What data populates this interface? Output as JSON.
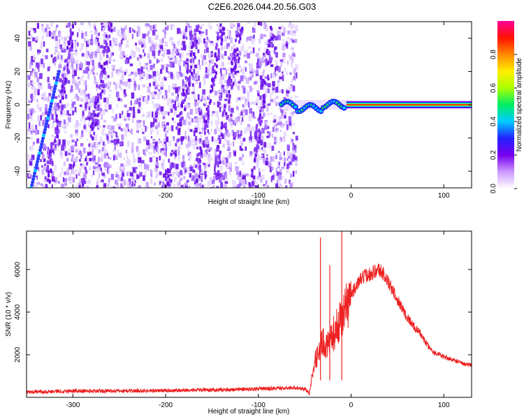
{
  "title": "C2E6.2026.044.20.56.G03",
  "chart_data": [
    {
      "type": "heatmap",
      "xlabel": "Height of straight line (km)",
      "ylabel": "Frequency (Hz)",
      "xlim": [
        -350,
        130
      ],
      "ylim": [
        -50,
        50
      ],
      "xticks": [
        -300,
        -200,
        -100,
        0,
        100
      ],
      "yticks": [
        -40,
        -20,
        0,
        20,
        40
      ],
      "colorbar": {
        "label": "Normalized spectral amplitude",
        "range": [
          0,
          1
        ],
        "ticks": [
          "0.0",
          "0.2",
          "0.4",
          "0.6",
          "0.8"
        ],
        "colors": [
          "#ffffff",
          "#cc99ff",
          "#7700ee",
          "#2222ff",
          "#00ccff",
          "#00ee66",
          "#aaff00",
          "#ffee00",
          "#ff8800",
          "#ff1100",
          "#ff0099"
        ]
      },
      "features": {
        "noise_region_x": [
          -350,
          -60
        ],
        "tone_start_x": -75,
        "tone_frequency_hz": 0,
        "diagonal_trace": {
          "from": [
            -345,
            -50
          ],
          "to": [
            -315,
            20
          ]
        }
      }
    },
    {
      "type": "line",
      "xlabel": "Height of straight line (km)",
      "ylabel": "SNR (10 * v/v)",
      "xlim": [
        -350,
        130
      ],
      "ylim": [
        0,
        7800
      ],
      "xticks": [
        -300,
        -200,
        -100,
        0,
        100
      ],
      "yticks": [
        2000,
        4000,
        6000
      ],
      "series_color": "#ee2222",
      "series": [
        {
          "x": [
            -350,
            -300,
            -250,
            -200,
            -150,
            -100,
            -60,
            -50,
            -45,
            -40,
            -35,
            -30,
            -25,
            -20,
            -15,
            -10,
            -5,
            0,
            5,
            10,
            15,
            20,
            25,
            30,
            35,
            40,
            45,
            50,
            55,
            60,
            65,
            70,
            75,
            80,
            85,
            90,
            100,
            110,
            120,
            130
          ],
          "y": [
            250,
            300,
            300,
            320,
            350,
            400,
            450,
            400,
            200,
            1500,
            2200,
            2600,
            2400,
            2900,
            3300,
            3800,
            4300,
            4800,
            5200,
            5500,
            5700,
            5800,
            5900,
            6000,
            5800,
            5400,
            5000,
            4600,
            4200,
            3800,
            3500,
            3200,
            3000,
            2600,
            2300,
            2100,
            1900,
            1750,
            1600,
            1500
          ]
        }
      ],
      "spikes": [
        {
          "x": -33,
          "y": 7500
        },
        {
          "x": -10,
          "y": 7800
        },
        {
          "x": -23,
          "y": 6200
        }
      ]
    }
  ]
}
